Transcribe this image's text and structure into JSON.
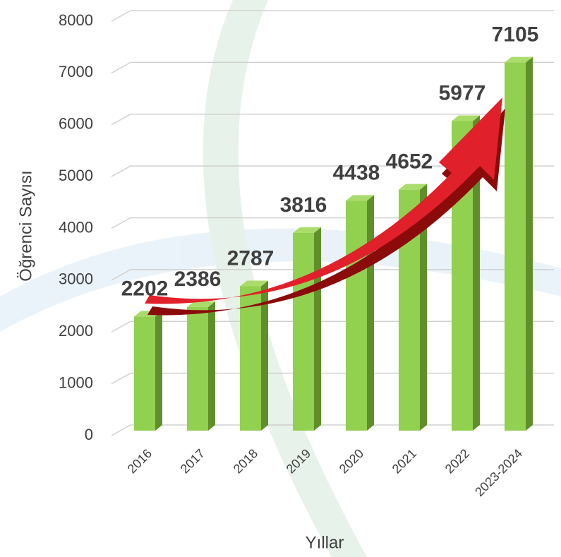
{
  "chart_data": {
    "type": "bar",
    "categories": [
      "2016",
      "2017",
      "2018",
      "2019",
      "2020",
      "2021",
      "2022",
      "2023-2024"
    ],
    "values": [
      2202,
      2386,
      2787,
      3816,
      4438,
      4652,
      5977,
      7105
    ],
    "color": "#92d050",
    "ylim": [
      0,
      8000
    ],
    "yticks": [
      0,
      1000,
      2000,
      3000,
      4000,
      5000,
      6000,
      7000,
      8000
    ],
    "grid": true,
    "ylabel": "Öğrenci Sayısı",
    "xlabel": "Yıllar"
  }
}
